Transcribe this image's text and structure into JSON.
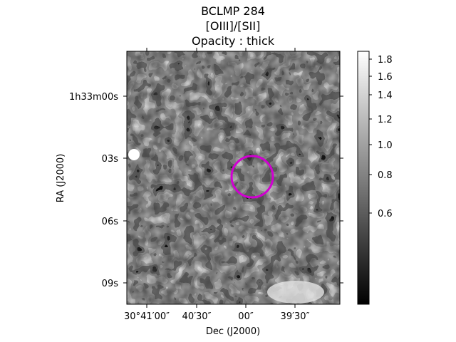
{
  "title": {
    "object": "BCLMP 284",
    "ratio": "[OIII]/[SII]",
    "opacity": "Opacity : thick"
  },
  "axes": {
    "xlabel": "Dec (J2000)",
    "ylabel": "RA (J2000)",
    "x_ticks": [
      "30°41′00″",
      "40′30″",
      "00″",
      "39′30″"
    ],
    "y_ticks": [
      "1h33m00s",
      "03s",
      "06s",
      "09s"
    ]
  },
  "colorbar": {
    "ticks": [
      "1.8",
      "1.6",
      "1.4",
      "1.2",
      "1.0",
      "0.8",
      "0.6"
    ],
    "values": [
      1.8,
      1.6,
      1.4,
      1.2,
      1.0,
      0.8,
      0.6
    ],
    "colormap": "gray"
  },
  "marker": {
    "shape": "circle",
    "color": "#d100d1"
  }
}
